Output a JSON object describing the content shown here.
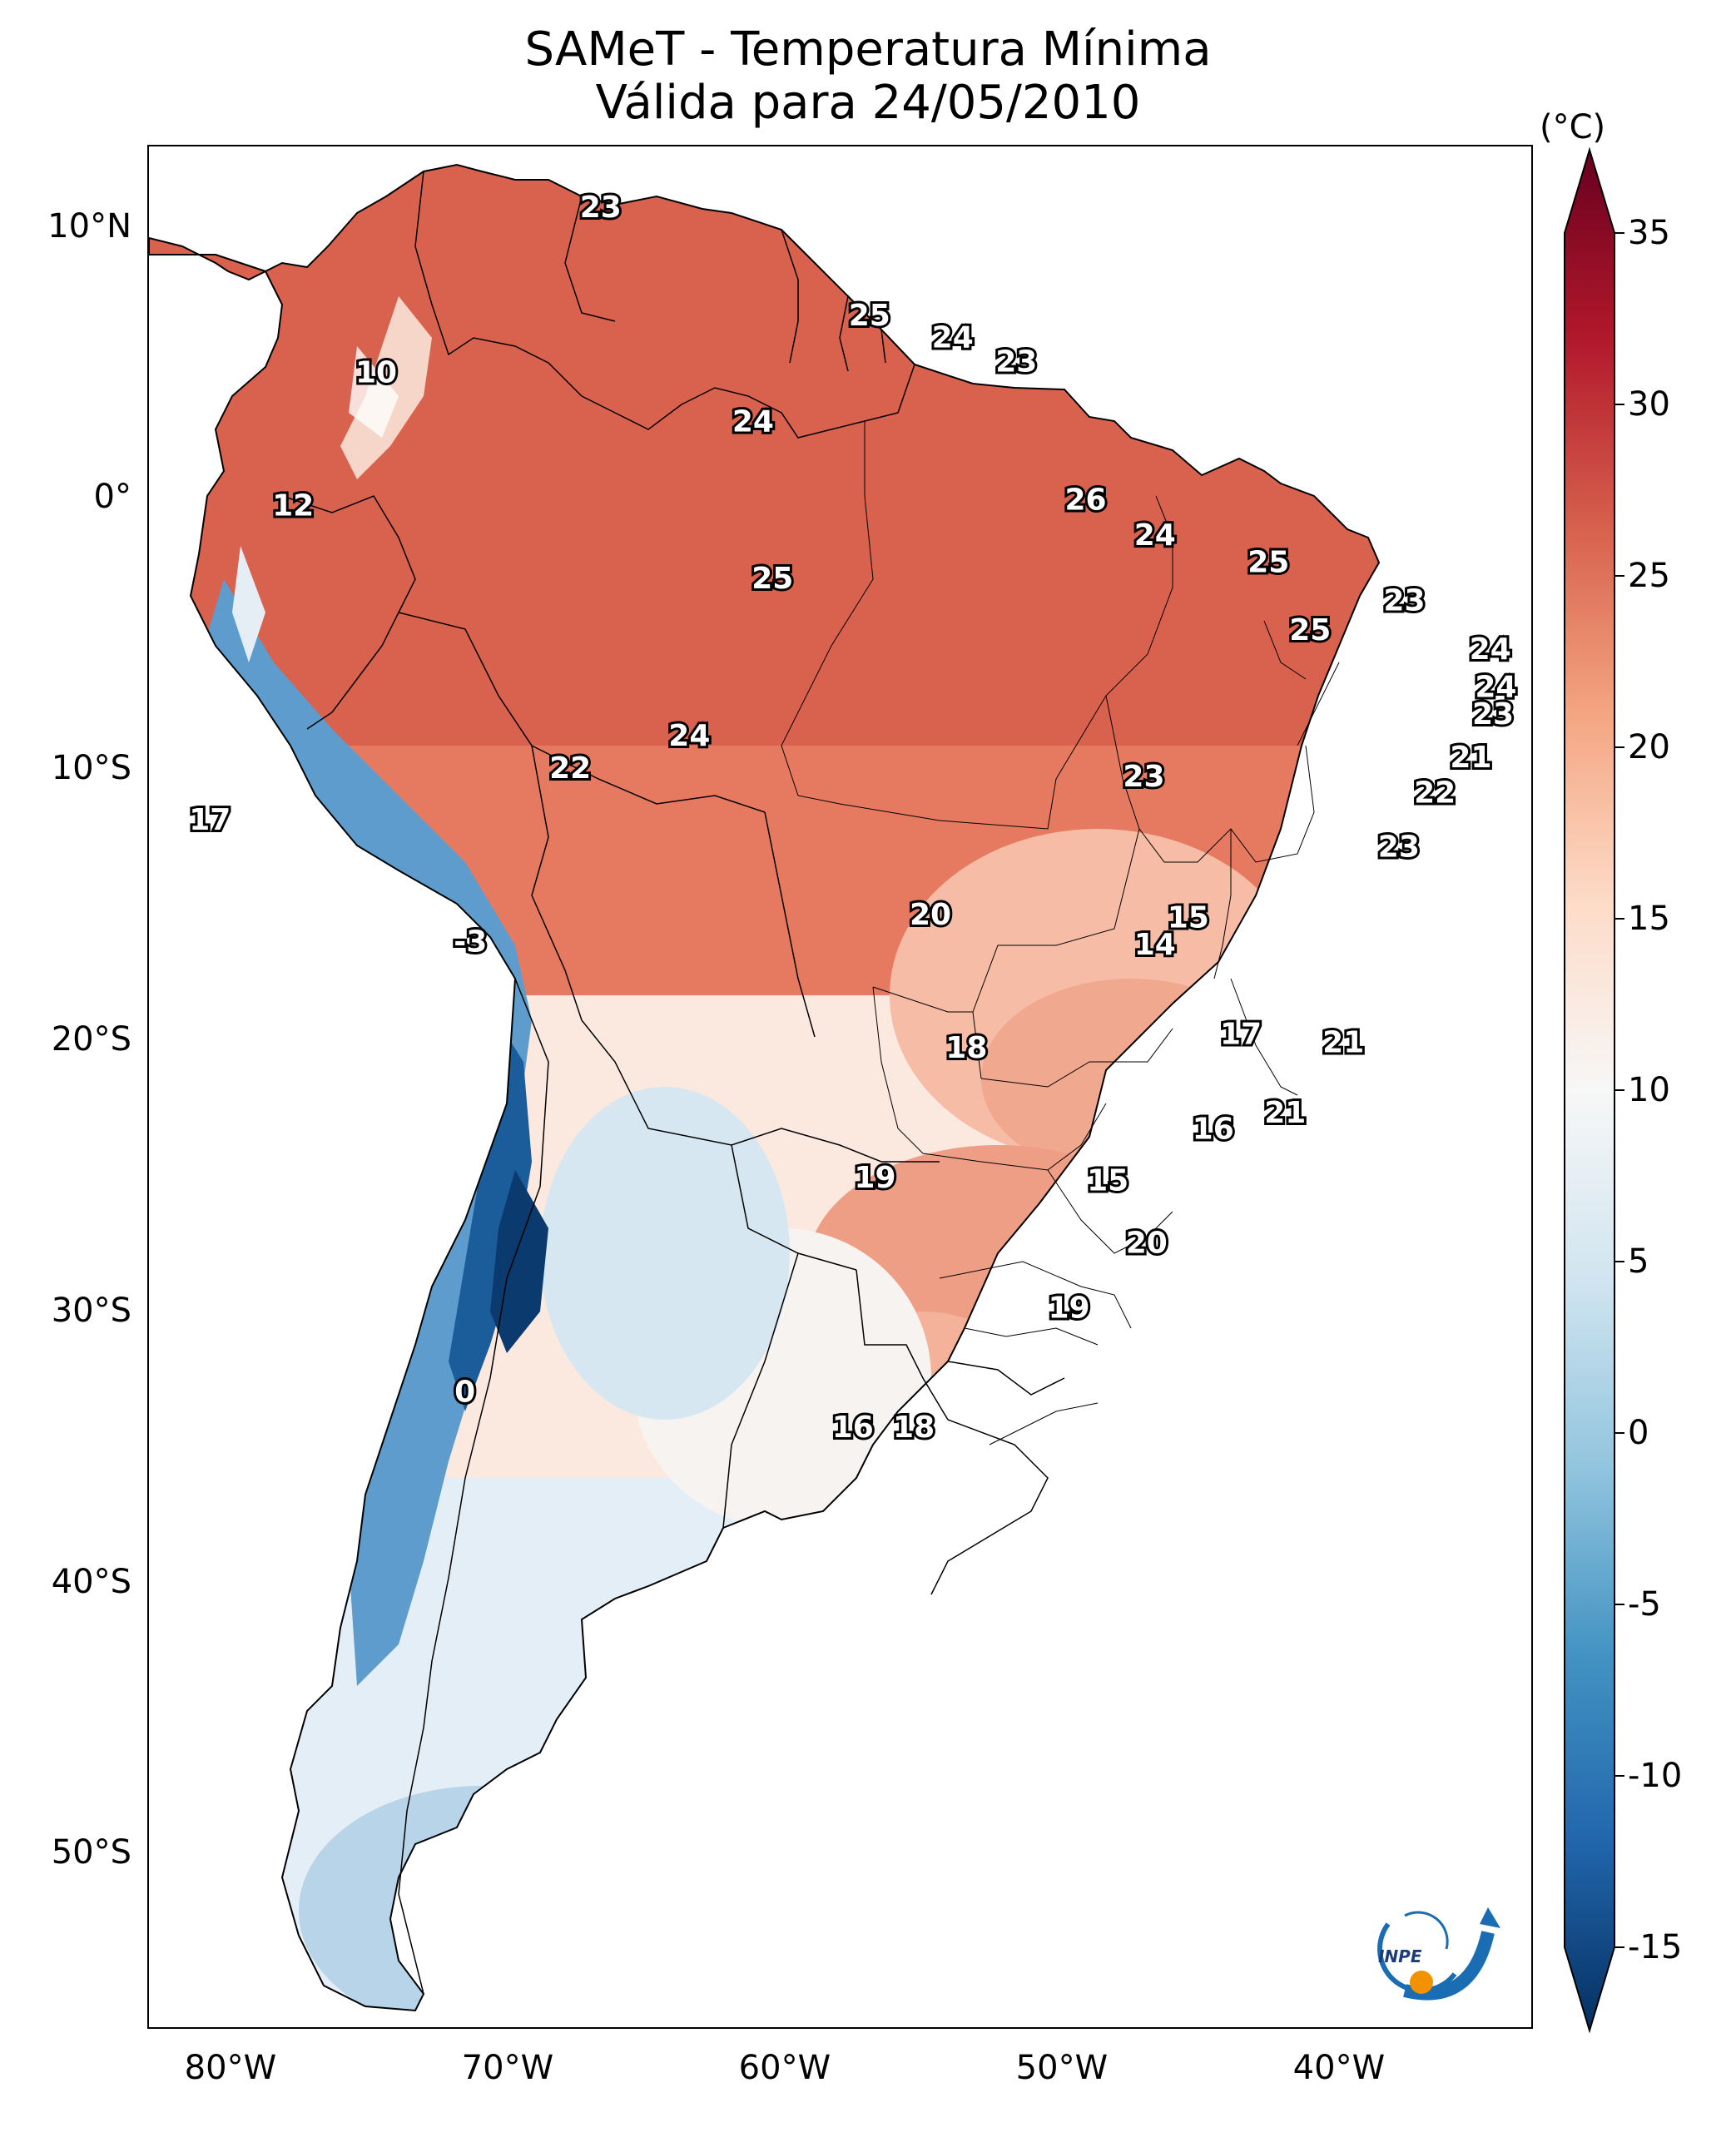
{
  "title": {
    "line1": "SAMeT - Temperatura Mínima",
    "line2": "Válida para 24/05/2010"
  },
  "colorbar": {
    "unit": "(°C)",
    "min": -15,
    "max": 35,
    "ticks": [
      "35",
      "30",
      "25",
      "20",
      "15",
      "10",
      "5",
      "0",
      "-5",
      "-10",
      "-15"
    ],
    "colors": [
      "#053061",
      "#2166ac",
      "#4393c3",
      "#92c5de",
      "#d1e5f0",
      "#f7f7f7",
      "#fddbc7",
      "#f4a582",
      "#d6604d",
      "#b2182b",
      "#67001f"
    ]
  },
  "axes": {
    "lat_labels": [
      "10°N",
      "0°",
      "10°S",
      "20°S",
      "30°S",
      "40°S",
      "50°S"
    ],
    "lon_labels": [
      "80°W",
      "70°W",
      "60°W",
      "50°W",
      "40°W"
    ],
    "lat_values": [
      10,
      0,
      -10,
      -20,
      -30,
      -40,
      -50
    ],
    "lon_values": [
      -80,
      -70,
      -60,
      -50,
      -40
    ],
    "extent": {
      "lon_min": -83,
      "lon_max": -33,
      "lat_min": -56.5,
      "lat_max": 13
    }
  },
  "logo": {
    "text": "INPE"
  },
  "labels": [
    {
      "lon": -66.7,
      "lat": 10.7,
      "text": "23"
    },
    {
      "lon": -74.8,
      "lat": 4.6,
      "text": "10"
    },
    {
      "lon": -77.8,
      "lat": -0.3,
      "text": "12"
    },
    {
      "lon": -57.0,
      "lat": 6.7,
      "text": "25"
    },
    {
      "lon": -54.0,
      "lat": 5.9,
      "text": "24"
    },
    {
      "lon": -51.7,
      "lat": 5.0,
      "text": "23"
    },
    {
      "lon": -61.2,
      "lat": 2.8,
      "text": "24"
    },
    {
      "lon": -60.5,
      "lat": -3.0,
      "text": "25"
    },
    {
      "lon": -49.2,
      "lat": -0.1,
      "text": "26"
    },
    {
      "lon": -46.7,
      "lat": -1.4,
      "text": "24"
    },
    {
      "lon": -42.6,
      "lat": -2.4,
      "text": "25"
    },
    {
      "lon": -41.1,
      "lat": -4.9,
      "text": "25"
    },
    {
      "lon": -37.7,
      "lat": -3.8,
      "text": "23"
    },
    {
      "lon": -34.6,
      "lat": -5.6,
      "text": "24"
    },
    {
      "lon": -34.4,
      "lat": -7.0,
      "text": "24"
    },
    {
      "lon": -34.5,
      "lat": -8.0,
      "text": "23"
    },
    {
      "lon": -35.3,
      "lat": -9.6,
      "text": "21"
    },
    {
      "lon": -36.6,
      "lat": -10.9,
      "text": "22"
    },
    {
      "lon": -37.9,
      "lat": -12.9,
      "text": "23"
    },
    {
      "lon": -47.1,
      "lat": -10.3,
      "text": "23"
    },
    {
      "lon": -63.5,
      "lat": -8.8,
      "text": "24"
    },
    {
      "lon": -67.8,
      "lat": -10.0,
      "text": "22"
    },
    {
      "lon": -80.8,
      "lat": -11.9,
      "text": "17"
    },
    {
      "lon": -71.4,
      "lat": -16.4,
      "text": "-3"
    },
    {
      "lon": -54.8,
      "lat": -15.4,
      "text": "20"
    },
    {
      "lon": -45.5,
      "lat": -15.5,
      "text": "15"
    },
    {
      "lon": -46.7,
      "lat": -16.5,
      "text": "14"
    },
    {
      "lon": -53.5,
      "lat": -20.3,
      "text": "18"
    },
    {
      "lon": -43.6,
      "lat": -19.8,
      "text": "17"
    },
    {
      "lon": -39.9,
      "lat": -20.1,
      "text": "21"
    },
    {
      "lon": -42.0,
      "lat": -22.7,
      "text": "21"
    },
    {
      "lon": -44.6,
      "lat": -23.3,
      "text": "16"
    },
    {
      "lon": -56.8,
      "lat": -25.1,
      "text": "19"
    },
    {
      "lon": -48.4,
      "lat": -25.2,
      "text": "15"
    },
    {
      "lon": -47.0,
      "lat": -27.5,
      "text": "20"
    },
    {
      "lon": -49.8,
      "lat": -29.9,
      "text": "19"
    },
    {
      "lon": -71.6,
      "lat": -33.0,
      "text": "0"
    },
    {
      "lon": -57.6,
      "lat": -34.3,
      "text": "16"
    },
    {
      "lon": -55.4,
      "lat": -34.3,
      "text": "18"
    }
  ]
}
